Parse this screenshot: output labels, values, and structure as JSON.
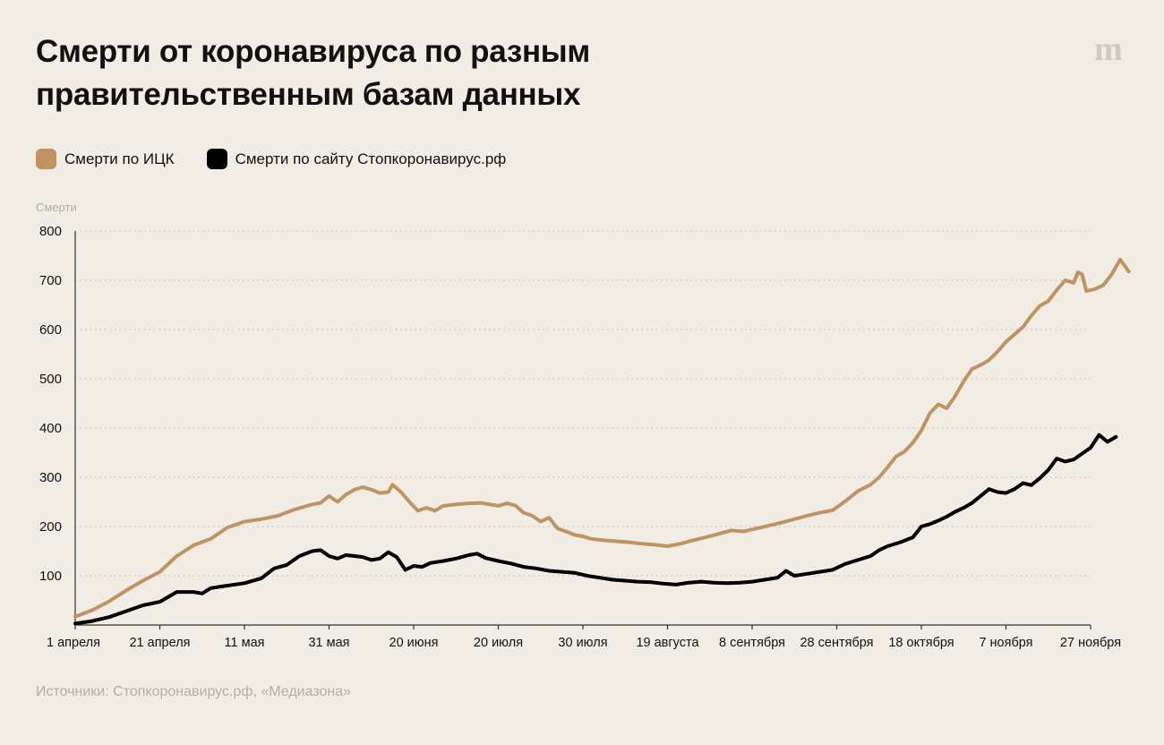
{
  "title": {
    "line1": "Смерти от коронавируса по разным",
    "line2": "правительственным базам данных"
  },
  "logo": {
    "name": "meduza-logo",
    "text": "m"
  },
  "legend": [
    {
      "label": "Смерти по ИЦК",
      "color": "#bf9462"
    },
    {
      "label": "Смерти по сайту Стопкоронавирус.рф",
      "color": "#000000"
    }
  ],
  "source": "Источники: Стопкоронавирус.рф, «Медиазона»",
  "chart_data": {
    "type": "line",
    "ylabel": "Смерти",
    "xlabel": "",
    "ylim": [
      0,
      800
    ],
    "yticks": [
      100,
      200,
      300,
      400,
      500,
      600,
      700,
      800
    ],
    "xlim": [
      0,
      240
    ],
    "x_ticks": [
      {
        "day": 0,
        "label": "1 апреля"
      },
      {
        "day": 20,
        "label": "21 апреля"
      },
      {
        "day": 40,
        "label": "11 мая"
      },
      {
        "day": 60,
        "label": "31 мая"
      },
      {
        "day": 80,
        "label": "20 июня"
      },
      {
        "day": 100,
        "label": "20 июля"
      },
      {
        "day": 120,
        "label": "30 июля"
      },
      {
        "day": 140,
        "label": "19 августа"
      },
      {
        "day": 160,
        "label": "8 сентября"
      },
      {
        "day": 180,
        "label": "28 сентября"
      },
      {
        "day": 200,
        "label": "18 октября"
      },
      {
        "day": 220,
        "label": "7 ноября"
      },
      {
        "day": 240,
        "label": "27 ноября"
      }
    ],
    "grid": true,
    "series": [
      {
        "name": "Смерти по ИЦК",
        "color": "#bf9462",
        "points": [
          [
            0,
            17
          ],
          [
            4,
            30
          ],
          [
            8,
            48
          ],
          [
            12,
            70
          ],
          [
            16,
            90
          ],
          [
            20,
            108
          ],
          [
            24,
            140
          ],
          [
            28,
            162
          ],
          [
            32,
            175
          ],
          [
            36,
            198
          ],
          [
            40,
            210
          ],
          [
            44,
            215
          ],
          [
            48,
            222
          ],
          [
            52,
            235
          ],
          [
            56,
            245
          ],
          [
            58,
            248
          ],
          [
            60,
            262
          ],
          [
            62,
            250
          ],
          [
            64,
            265
          ],
          [
            66,
            275
          ],
          [
            68,
            280
          ],
          [
            70,
            275
          ],
          [
            72,
            268
          ],
          [
            74,
            270
          ],
          [
            75,
            285
          ],
          [
            77,
            270
          ],
          [
            79,
            250
          ],
          [
            81,
            232
          ],
          [
            83,
            238
          ],
          [
            85,
            232
          ],
          [
            87,
            242
          ],
          [
            90,
            245
          ],
          [
            93,
            247
          ],
          [
            96,
            248
          ],
          [
            98,
            245
          ],
          [
            100,
            242
          ],
          [
            102,
            247
          ],
          [
            104,
            243
          ],
          [
            106,
            228
          ],
          [
            108,
            222
          ],
          [
            110,
            210
          ],
          [
            112,
            218
          ],
          [
            114,
            196
          ],
          [
            116,
            190
          ],
          [
            118,
            183
          ],
          [
            120,
            180
          ],
          [
            122,
            175
          ],
          [
            125,
            172
          ],
          [
            128,
            170
          ],
          [
            131,
            168
          ],
          [
            134,
            165
          ],
          [
            137,
            163
          ],
          [
            140,
            160
          ],
          [
            143,
            165
          ],
          [
            146,
            172
          ],
          [
            149,
            178
          ],
          [
            152,
            185
          ],
          [
            155,
            192
          ],
          [
            158,
            190
          ],
          [
            161,
            196
          ],
          [
            164,
            202
          ],
          [
            167,
            208
          ],
          [
            170,
            215
          ],
          [
            173,
            222
          ],
          [
            176,
            228
          ],
          [
            179,
            233
          ],
          [
            181,
            245
          ],
          [
            183,
            258
          ],
          [
            185,
            272
          ],
          [
            188,
            285
          ],
          [
            190,
            300
          ],
          [
            192,
            320
          ],
          [
            194,
            342
          ],
          [
            196,
            352
          ],
          [
            198,
            370
          ],
          [
            200,
            395
          ],
          [
            202,
            430
          ],
          [
            204,
            448
          ],
          [
            206,
            440
          ],
          [
            208,
            465
          ],
          [
            210,
            495
          ],
          [
            212,
            520
          ],
          [
            214,
            528
          ],
          [
            216,
            538
          ],
          [
            218,
            555
          ],
          [
            220,
            575
          ],
          [
            222,
            590
          ],
          [
            224,
            605
          ],
          [
            226,
            628
          ],
          [
            228,
            648
          ],
          [
            230,
            658
          ],
          [
            232,
            680
          ],
          [
            234,
            700
          ],
          [
            236,
            695
          ],
          [
            237,
            716
          ],
          [
            238,
            712
          ],
          [
            239,
            678
          ],
          [
            241,
            682
          ],
          [
            243,
            690
          ],
          [
            245,
            712
          ],
          [
            247,
            742
          ],
          [
            249,
            718
          ]
        ]
      },
      {
        "name": "Смерти по сайту Стопкоронавирус.рф",
        "color": "#000000",
        "points": [
          [
            0,
            3
          ],
          [
            4,
            8
          ],
          [
            8,
            16
          ],
          [
            12,
            28
          ],
          [
            16,
            40
          ],
          [
            20,
            47
          ],
          [
            24,
            67
          ],
          [
            28,
            67
          ],
          [
            30,
            64
          ],
          [
            32,
            75
          ],
          [
            36,
            80
          ],
          [
            40,
            85
          ],
          [
            44,
            95
          ],
          [
            47,
            115
          ],
          [
            50,
            122
          ],
          [
            53,
            140
          ],
          [
            56,
            150
          ],
          [
            58,
            152
          ],
          [
            60,
            140
          ],
          [
            62,
            135
          ],
          [
            64,
            142
          ],
          [
            66,
            140
          ],
          [
            68,
            138
          ],
          [
            70,
            132
          ],
          [
            72,
            135
          ],
          [
            74,
            148
          ],
          [
            76,
            138
          ],
          [
            78,
            112
          ],
          [
            80,
            120
          ],
          [
            82,
            118
          ],
          [
            84,
            126
          ],
          [
            87,
            130
          ],
          [
            90,
            135
          ],
          [
            93,
            142
          ],
          [
            95,
            145
          ],
          [
            97,
            136
          ],
          [
            100,
            130
          ],
          [
            103,
            125
          ],
          [
            106,
            118
          ],
          [
            109,
            115
          ],
          [
            112,
            110
          ],
          [
            115,
            108
          ],
          [
            118,
            106
          ],
          [
            121,
            100
          ],
          [
            124,
            96
          ],
          [
            127,
            92
          ],
          [
            130,
            90
          ],
          [
            133,
            88
          ],
          [
            136,
            87
          ],
          [
            139,
            84
          ],
          [
            142,
            82
          ],
          [
            145,
            86
          ],
          [
            148,
            88
          ],
          [
            151,
            86
          ],
          [
            154,
            85
          ],
          [
            157,
            86
          ],
          [
            160,
            88
          ],
          [
            163,
            92
          ],
          [
            166,
            96
          ],
          [
            168,
            110
          ],
          [
            170,
            100
          ],
          [
            173,
            104
          ],
          [
            176,
            108
          ],
          [
            179,
            112
          ],
          [
            182,
            124
          ],
          [
            185,
            132
          ],
          [
            188,
            140
          ],
          [
            190,
            152
          ],
          [
            192,
            160
          ],
          [
            195,
            168
          ],
          [
            198,
            178
          ],
          [
            200,
            200
          ],
          [
            202,
            205
          ],
          [
            204,
            212
          ],
          [
            206,
            220
          ],
          [
            208,
            230
          ],
          [
            210,
            238
          ],
          [
            212,
            248
          ],
          [
            214,
            262
          ],
          [
            216,
            276
          ],
          [
            218,
            270
          ],
          [
            220,
            268
          ],
          [
            222,
            276
          ],
          [
            224,
            288
          ],
          [
            226,
            284
          ],
          [
            228,
            298
          ],
          [
            230,
            315
          ],
          [
            232,
            338
          ],
          [
            234,
            332
          ],
          [
            236,
            336
          ],
          [
            238,
            348
          ],
          [
            240,
            360
          ],
          [
            242,
            386
          ],
          [
            244,
            372
          ],
          [
            246,
            382
          ]
        ]
      }
    ]
  }
}
